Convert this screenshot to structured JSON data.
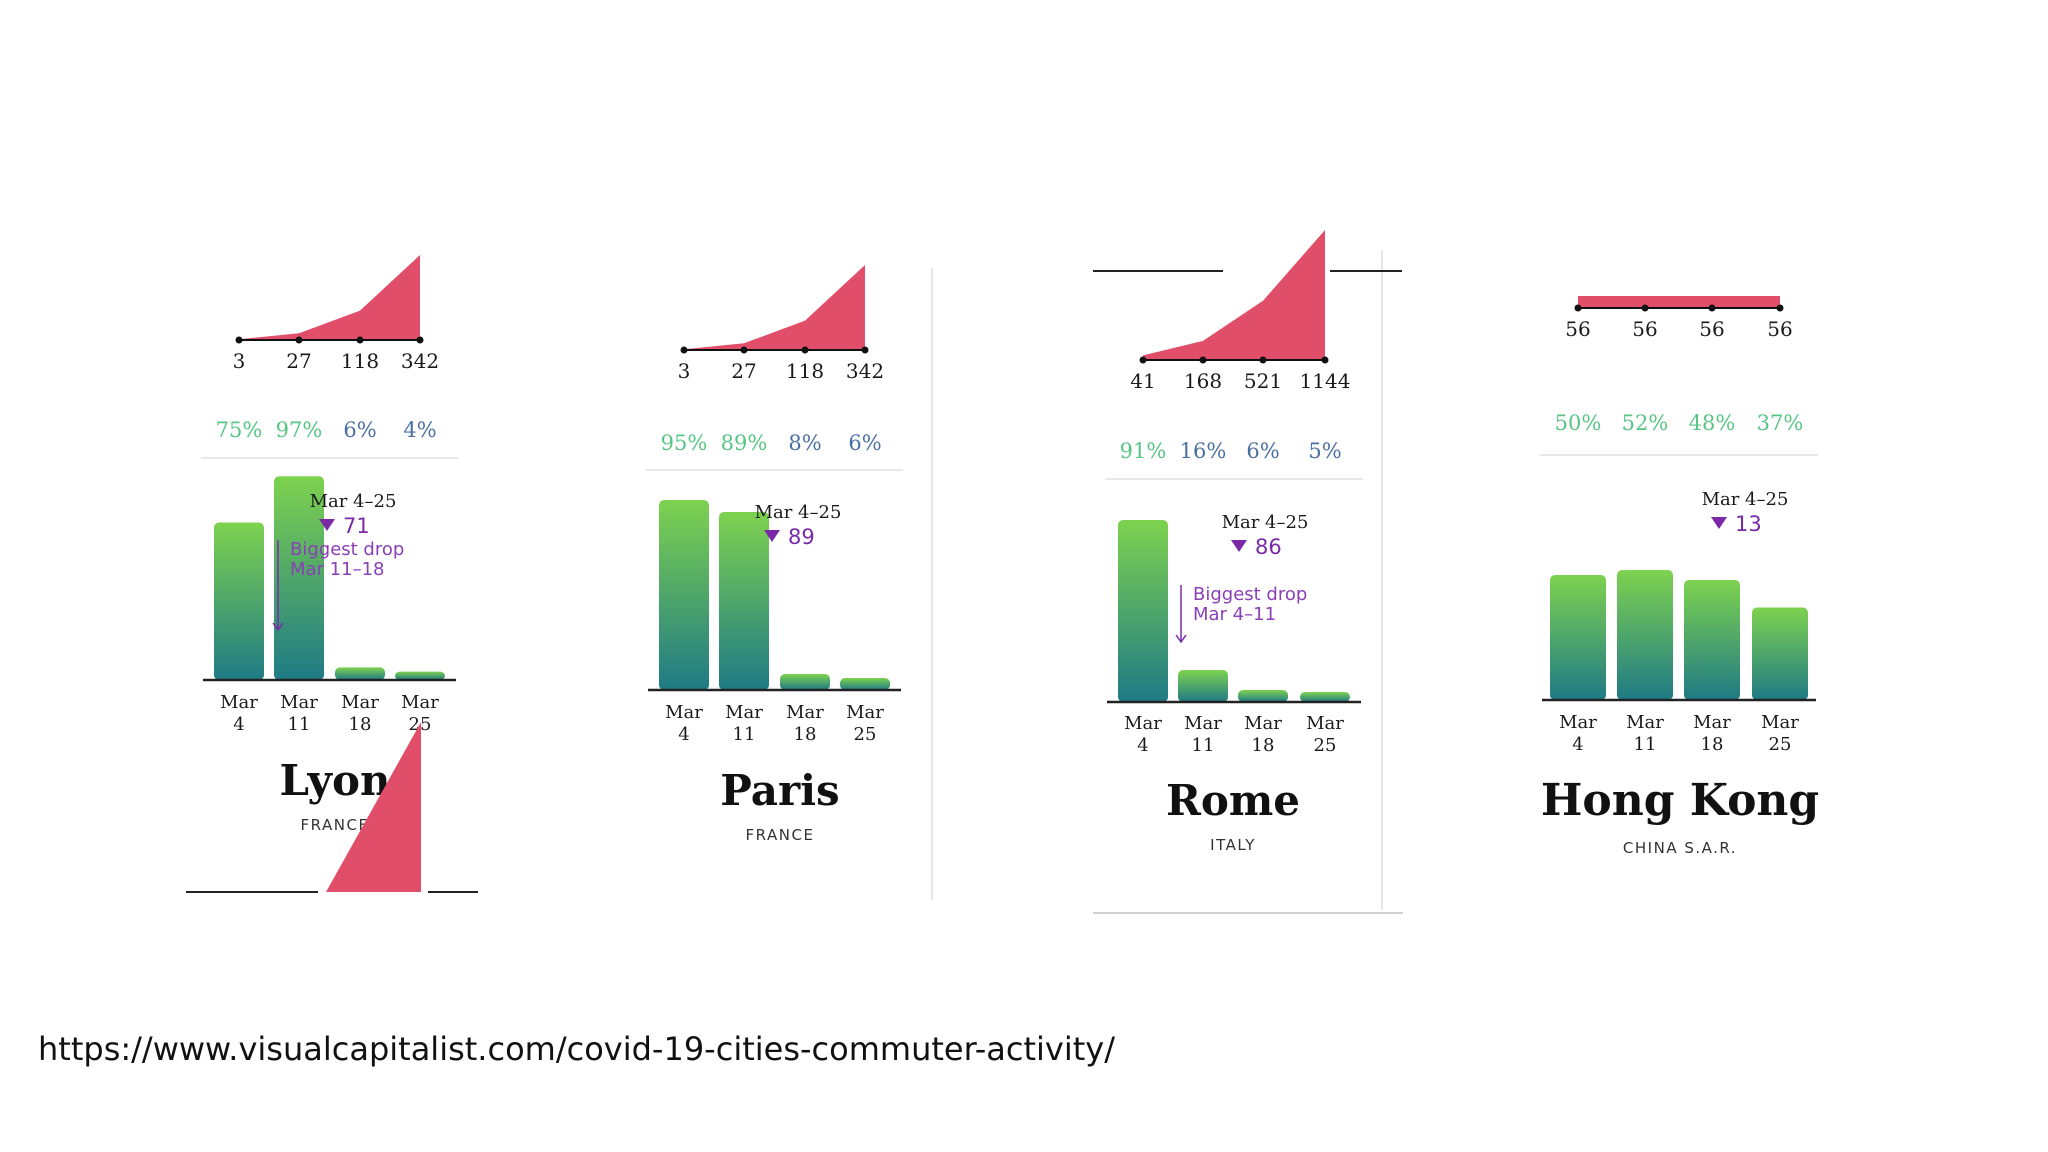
{
  "colors": {
    "cases_fill": "#e04e69",
    "bar_top": "#7ed24f",
    "bar_bottom": "#1f7a85",
    "pct_high": "#57c583",
    "pct_low": "#4a6fa3",
    "drop_purple": "#7a2aa8",
    "text_dark": "#1a1a1a"
  },
  "source_url": "https://www.visualcapitalist.com/covid-19-cities-commuter-activity/",
  "chart_data": [
    {
      "type": "bar",
      "city": "Lyon",
      "country": "FRANCE",
      "categories": [
        "Mar 4",
        "Mar 11",
        "Mar 18",
        "Mar 25"
      ],
      "cat_lines": [
        [
          "Mar",
          "4"
        ],
        [
          "Mar",
          "11"
        ],
        [
          "Mar",
          "18"
        ],
        [
          "Mar",
          "25"
        ]
      ],
      "cases": [
        3,
        27,
        118,
        342
      ],
      "cases_labels": [
        "3",
        "27",
        "118",
        "342"
      ],
      "percent_labels": [
        "75%",
        "97%",
        "6%",
        "4%"
      ],
      "values": [
        75,
        97,
        6,
        4
      ],
      "period_label": "Mar 4–25",
      "drop_value": "71",
      "biggest_drop": [
        "Biggest drop",
        "Mar 11–18"
      ]
    },
    {
      "type": "bar",
      "city": "Paris",
      "country": "FRANCE",
      "categories": [
        "Mar 4",
        "Mar 11",
        "Mar 18",
        "Mar 25"
      ],
      "cat_lines": [
        [
          "Mar",
          "4"
        ],
        [
          "Mar",
          "11"
        ],
        [
          "Mar",
          "18"
        ],
        [
          "Mar",
          "25"
        ]
      ],
      "cases": [
        3,
        27,
        118,
        342
      ],
      "cases_labels": [
        "3",
        "27",
        "118",
        "342"
      ],
      "percent_labels": [
        "95%",
        "89%",
        "8%",
        "6%"
      ],
      "values": [
        95,
        89,
        8,
        6
      ],
      "period_label": "Mar 4–25",
      "drop_value": "89"
    },
    {
      "type": "bar",
      "city": "Rome",
      "country": "ITALY",
      "categories": [
        "Mar 4",
        "Mar 11",
        "Mar 18",
        "Mar 25"
      ],
      "cat_lines": [
        [
          "Mar",
          "4"
        ],
        [
          "Mar",
          "11"
        ],
        [
          "Mar",
          "18"
        ],
        [
          "Mar",
          "25"
        ]
      ],
      "cases": [
        41,
        168,
        521,
        1144
      ],
      "cases_labels": [
        "41",
        "168",
        "521",
        "1144"
      ],
      "percent_labels": [
        "91%",
        "16%",
        "6%",
        "5%"
      ],
      "values": [
        91,
        16,
        6,
        5
      ],
      "period_label": "Mar 4–25",
      "drop_value": "86",
      "biggest_drop": [
        "Biggest drop",
        "Mar 4–11"
      ]
    },
    {
      "type": "bar",
      "city": "Hong Kong",
      "country": "CHINA S.A.R.",
      "categories": [
        "Mar 4",
        "Mar 11",
        "Mar 18",
        "Mar 25"
      ],
      "cat_lines": [
        [
          "Mar",
          "4"
        ],
        [
          "Mar",
          "11"
        ],
        [
          "Mar",
          "18"
        ],
        [
          "Mar",
          "25"
        ]
      ],
      "cases": [
        56,
        56,
        56,
        56
      ],
      "cases_labels": [
        "56",
        "56",
        "56",
        "56"
      ],
      "percent_labels": [
        "50%",
        "52%",
        "48%",
        "37%"
      ],
      "values": [
        50,
        52,
        48,
        37
      ],
      "period_label": "Mar 4–25",
      "drop_value": "13"
    }
  ]
}
